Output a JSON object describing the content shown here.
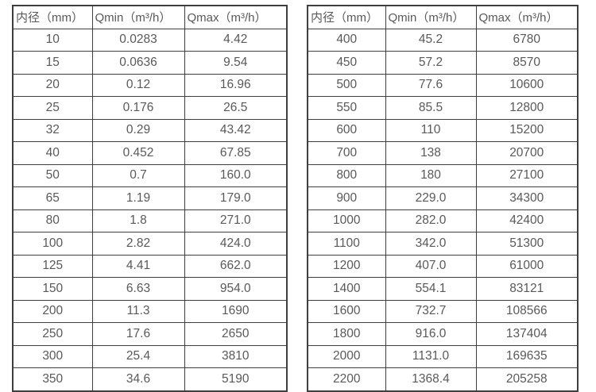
{
  "colors": {
    "background": "#ffffff",
    "border": "#3f3f3f",
    "text": "#595959"
  },
  "tables": [
    {
      "id": "pipe-flow-table-left",
      "headers": [
        "内径（mm）",
        "Qmin（m³/h）",
        "Qmax（m³/h）"
      ],
      "rows": [
        [
          "10",
          "0.0283",
          "4.42"
        ],
        [
          "15",
          "0.0636",
          "9.54"
        ],
        [
          "20",
          "0.12",
          "16.96"
        ],
        [
          "25",
          "0.176",
          "26.5"
        ],
        [
          "32",
          "0.29",
          "43.42"
        ],
        [
          "40",
          "0.452",
          "67.85"
        ],
        [
          "50",
          "0.7",
          "160.0"
        ],
        [
          "65",
          "1.19",
          "179.0"
        ],
        [
          "80",
          "1.8",
          "271.0"
        ],
        [
          "100",
          "2.82",
          "424.0"
        ],
        [
          "125",
          "4.41",
          "662.0"
        ],
        [
          "150",
          "6.63",
          "954.0"
        ],
        [
          "200",
          "11.3",
          "1690"
        ],
        [
          "250",
          "17.6",
          "2650"
        ],
        [
          "300",
          "25.4",
          "3810"
        ],
        [
          "350",
          "34.6",
          "5190"
        ]
      ]
    },
    {
      "id": "pipe-flow-table-right",
      "headers": [
        "内径（mm）",
        "Qmin（m³/h）",
        "Qmax（m³/h）"
      ],
      "rows": [
        [
          "400",
          "45.2",
          "6780"
        ],
        [
          "450",
          "57.2",
          "8570"
        ],
        [
          "500",
          "77.6",
          "10600"
        ],
        [
          "550",
          "85.5",
          "12800"
        ],
        [
          "600",
          "110",
          "15200"
        ],
        [
          "700",
          "138",
          "20700"
        ],
        [
          "800",
          "180",
          "27100"
        ],
        [
          "900",
          "229.0",
          "34300"
        ],
        [
          "1000",
          "282.0",
          "42400"
        ],
        [
          "1100",
          "342.0",
          "51300"
        ],
        [
          "1200",
          "407.0",
          "61000"
        ],
        [
          "1400",
          "554.1",
          "83121"
        ],
        [
          "1600",
          "732.7",
          "108566"
        ],
        [
          "1800",
          "916.0",
          "137404"
        ],
        [
          "2000",
          "1131.0",
          "169635"
        ],
        [
          "2200",
          "1368.4",
          "205258"
        ]
      ]
    }
  ]
}
